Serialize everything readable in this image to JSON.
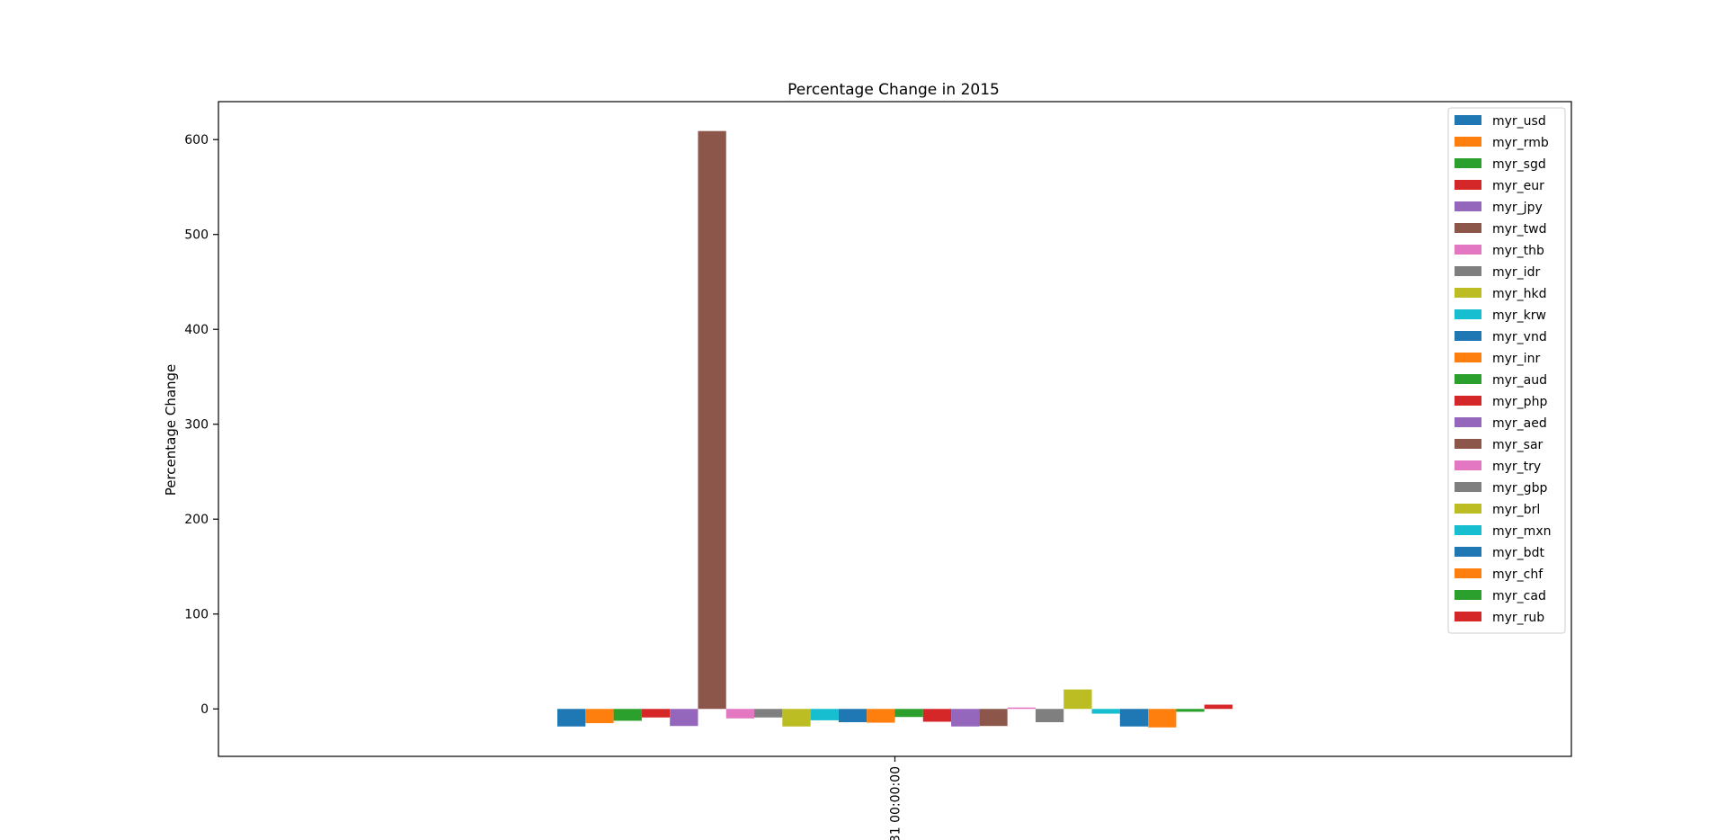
{
  "chart_data": {
    "type": "bar",
    "title": "Percentage Change in 2015",
    "xlabel": "",
    "ylabel": "Percentage Change",
    "categories": [
      "31 00:00:00"
    ],
    "ylim": [
      -50,
      640
    ],
    "yticks": [
      0,
      100,
      200,
      300,
      400,
      500,
      600
    ],
    "grid": false,
    "legend_position": "top-right",
    "series": [
      {
        "name": "myr_usd",
        "color": "#1f77b4",
        "values": [
          -18.5
        ]
      },
      {
        "name": "myr_rmb",
        "color": "#ff7f0e",
        "values": [
          -15.0
        ]
      },
      {
        "name": "myr_sgd",
        "color": "#2ca02c",
        "values": [
          -12.5
        ]
      },
      {
        "name": "myr_eur",
        "color": "#d62728",
        "values": [
          -9.0
        ]
      },
      {
        "name": "myr_jpy",
        "color": "#9467bd",
        "values": [
          -18.0
        ]
      },
      {
        "name": "myr_twd",
        "color": "#8c564b",
        "values": [
          609.0
        ]
      },
      {
        "name": "myr_thb",
        "color": "#e377c2",
        "values": [
          -10.0
        ]
      },
      {
        "name": "myr_idr",
        "color": "#7f7f7f",
        "values": [
          -9.0
        ]
      },
      {
        "name": "myr_hkd",
        "color": "#bcbd22",
        "values": [
          -18.5
        ]
      },
      {
        "name": "myr_krw",
        "color": "#17becf",
        "values": [
          -12.0
        ]
      },
      {
        "name": "myr_vnd",
        "color": "#1f77b4",
        "values": [
          -14.0
        ]
      },
      {
        "name": "myr_inr",
        "color": "#ff7f0e",
        "values": [
          -14.5
        ]
      },
      {
        "name": "myr_aud",
        "color": "#2ca02c",
        "values": [
          -8.5
        ]
      },
      {
        "name": "myr_php",
        "color": "#d62728",
        "values": [
          -13.5
        ]
      },
      {
        "name": "myr_aed",
        "color": "#9467bd",
        "values": [
          -18.5
        ]
      },
      {
        "name": "myr_sar",
        "color": "#8c564b",
        "values": [
          -18.0
        ]
      },
      {
        "name": "myr_try",
        "color": "#e377c2",
        "values": [
          1.5
        ]
      },
      {
        "name": "myr_gbp",
        "color": "#7f7f7f",
        "values": [
          -14.0
        ]
      },
      {
        "name": "myr_brl",
        "color": "#bcbd22",
        "values": [
          20.5
        ]
      },
      {
        "name": "myr_mxn",
        "color": "#17becf",
        "values": [
          -5.0
        ]
      },
      {
        "name": "myr_bdt",
        "color": "#1f77b4",
        "values": [
          -18.5
        ]
      },
      {
        "name": "myr_chf",
        "color": "#ff7f0e",
        "values": [
          -19.5
        ]
      },
      {
        "name": "myr_cad",
        "color": "#2ca02c",
        "values": [
          -3.0
        ]
      },
      {
        "name": "myr_rub",
        "color": "#d62728",
        "values": [
          4.5
        ]
      }
    ]
  }
}
